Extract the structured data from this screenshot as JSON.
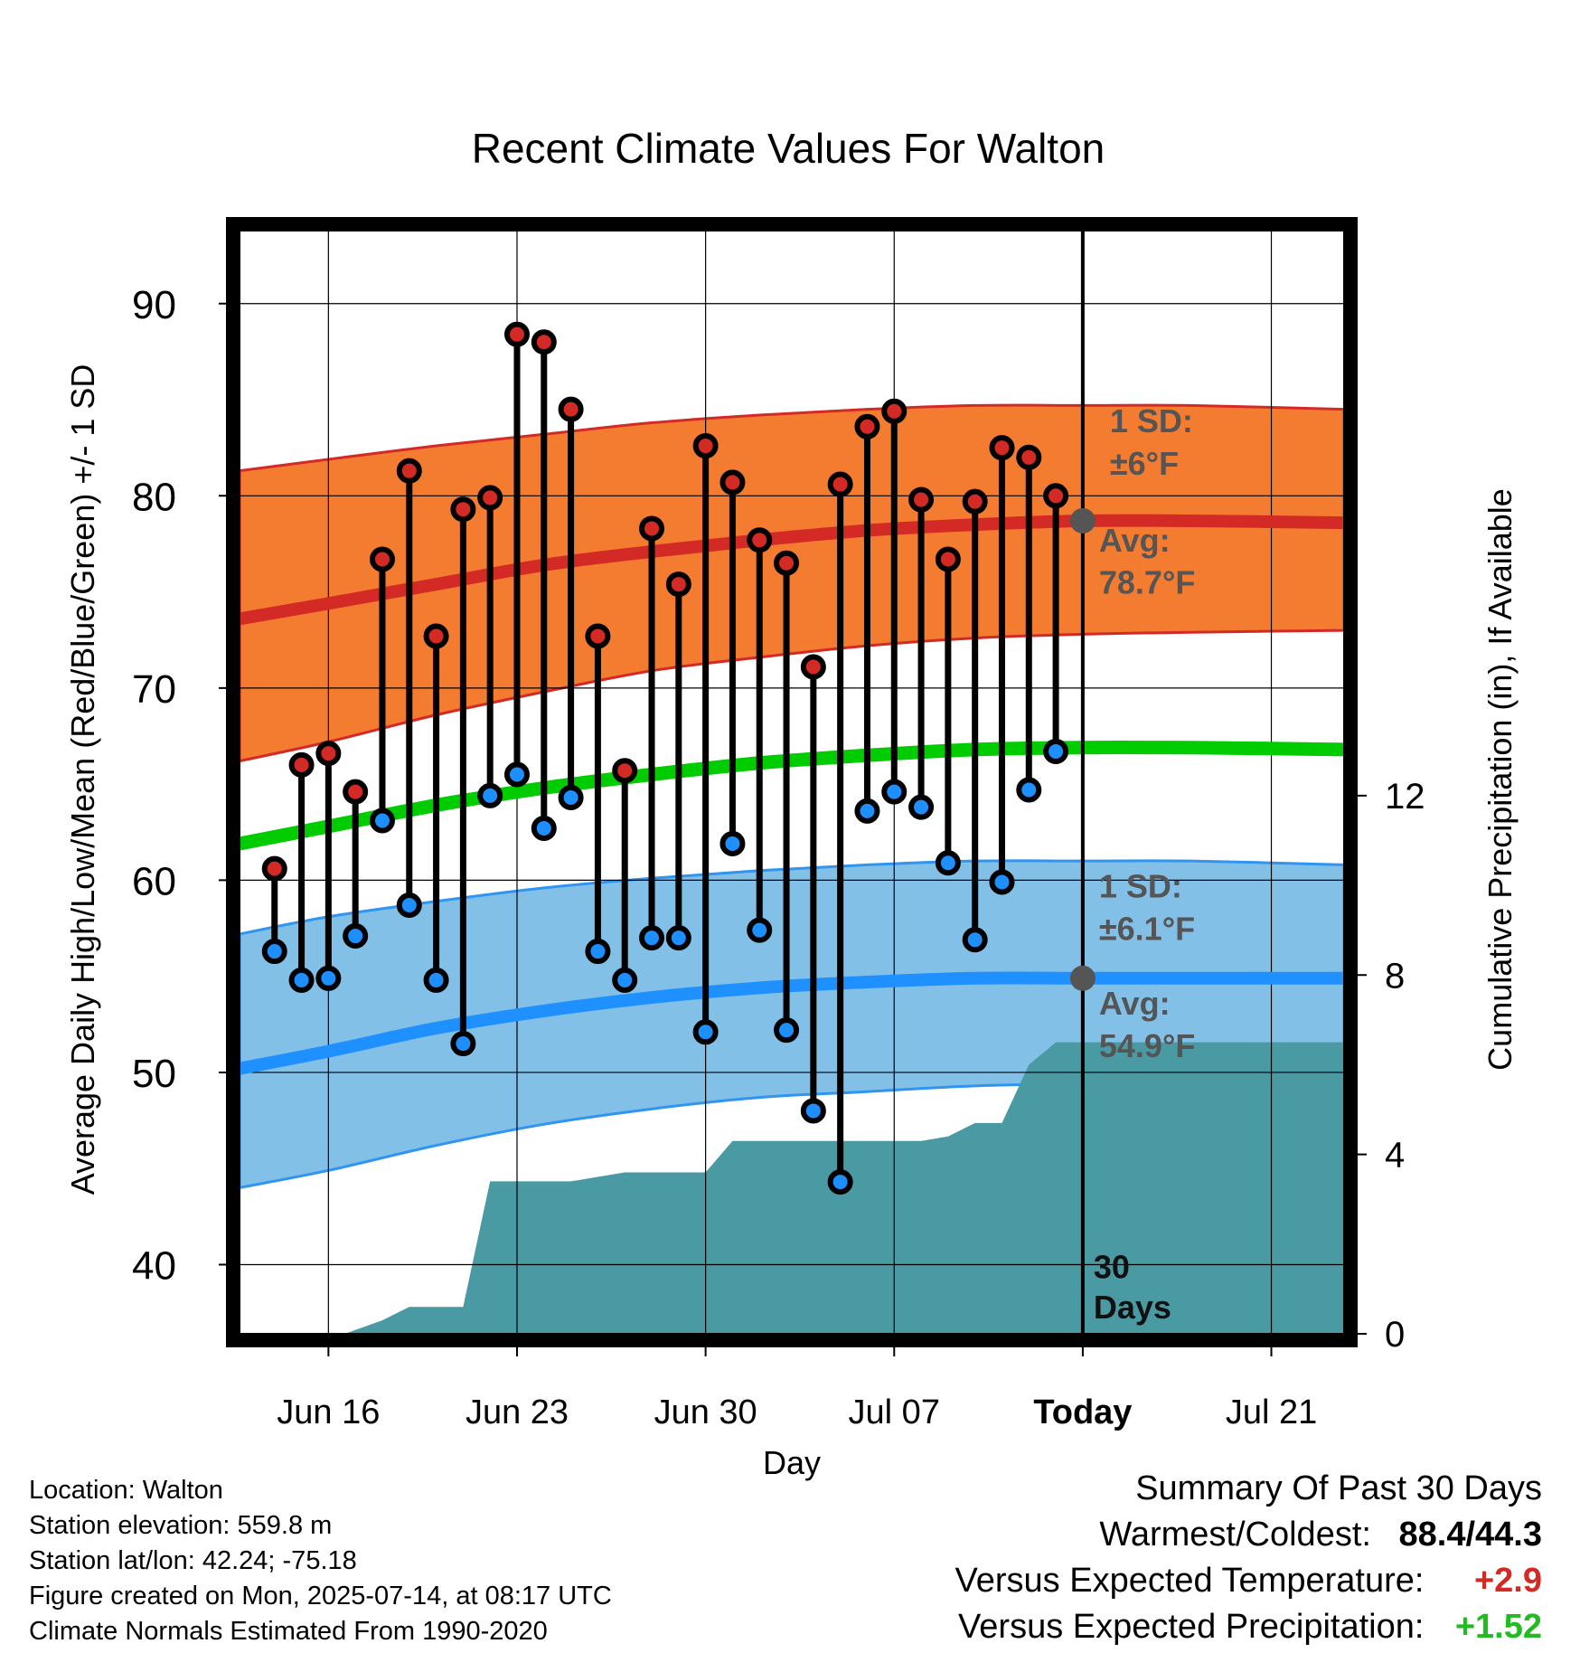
{
  "chart_data": {
    "type": "line",
    "title": "Recent Climate Values For Walton",
    "xlabel": "Day",
    "ylabel": "Average Daily High/Low/Mean (Red/Blue/Green) +/- 1 SD",
    "ylabel_right": "Cumulative Precipitation (in), If Available",
    "ylim": [
      36.4,
      93.8
    ],
    "ylim_right": [
      0,
      24.6
    ],
    "x_ticks": [
      {
        "day": 16,
        "label": "Jun 16"
      },
      {
        "day": 23,
        "label": "Jun 23"
      },
      {
        "day": 30,
        "label": "Jun 30"
      },
      {
        "day": 37,
        "label": "Jul 07"
      },
      {
        "day": 44,
        "label": "Today"
      },
      {
        "day": 51,
        "label": "Jul 21"
      }
    ],
    "y_ticks": [
      40,
      50,
      60,
      70,
      80,
      90
    ],
    "y_ticks_right": [
      0,
      4,
      8,
      12
    ],
    "x_range_days": [
      12.7,
      53.7
    ],
    "today_day": 44,
    "daily": [
      {
        "date": "Jun 14",
        "high": 60.6,
        "low": 56.3
      },
      {
        "date": "Jun 15",
        "high": 66.0,
        "low": 54.8
      },
      {
        "date": "Jun 16",
        "high": 66.6,
        "low": 54.9
      },
      {
        "date": "Jun 17",
        "high": 64.6,
        "low": 57.1
      },
      {
        "date": "Jun 18",
        "high": 76.7,
        "low": 63.1
      },
      {
        "date": "Jun 19",
        "high": 81.3,
        "low": 58.7
      },
      {
        "date": "Jun 20",
        "high": 72.7,
        "low": 54.8
      },
      {
        "date": "Jun 21",
        "high": 79.3,
        "low": 51.5
      },
      {
        "date": "Jun 22",
        "high": 79.9,
        "low": 64.4
      },
      {
        "date": "Jun 23",
        "high": 88.4,
        "low": 65.5
      },
      {
        "date": "Jun 24",
        "high": 88.0,
        "low": 62.7
      },
      {
        "date": "Jun 25",
        "high": 84.5,
        "low": 64.3
      },
      {
        "date": "Jun 26",
        "high": 72.7,
        "low": 56.3
      },
      {
        "date": "Jun 27",
        "high": 65.7,
        "low": 54.8
      },
      {
        "date": "Jun 28",
        "high": 78.3,
        "low": 57.0
      },
      {
        "date": "Jun 29",
        "high": 75.4,
        "low": 57.0
      },
      {
        "date": "Jun 30",
        "high": 82.6,
        "low": 52.1
      },
      {
        "date": "Jul 01",
        "high": 80.7,
        "low": 61.9
      },
      {
        "date": "Jul 02",
        "high": 77.7,
        "low": 57.4
      },
      {
        "date": "Jul 03",
        "high": 76.5,
        "low": 52.2
      },
      {
        "date": "Jul 04",
        "high": 71.1,
        "low": 48.0
      },
      {
        "date": "Jul 05",
        "high": 80.6,
        "low": 44.3
      },
      {
        "date": "Jul 06",
        "high": 83.6,
        "low": 63.6
      },
      {
        "date": "Jul 07",
        "high": 84.4,
        "low": 64.6
      },
      {
        "date": "Jul 08",
        "high": 79.8,
        "low": 63.8
      },
      {
        "date": "Jul 09",
        "high": 76.7,
        "low": 60.9
      },
      {
        "date": "Jul 10",
        "high": 79.7,
        "low": 56.9
      },
      {
        "date": "Jul 11",
        "high": 82.5,
        "low": 59.9
      },
      {
        "date": "Jul 12",
        "high": 82.0,
        "low": 64.7
      },
      {
        "date": "Jul 13",
        "high": 80.0,
        "low": 66.7
      }
    ],
    "normals": {
      "days": [
        12.7,
        16,
        20,
        24,
        28,
        32,
        36,
        40,
        44,
        48,
        53.7
      ],
      "high_mean": [
        73.6,
        74.4,
        75.4,
        76.4,
        77.1,
        77.7,
        78.2,
        78.5,
        78.7,
        78.7,
        78.6
      ],
      "high_upper": [
        81.3,
        81.9,
        82.6,
        83.2,
        83.8,
        84.2,
        84.5,
        84.7,
        84.7,
        84.7,
        84.5
      ],
      "high_lower": [
        66.2,
        67.2,
        68.6,
        69.8,
        70.9,
        71.6,
        72.2,
        72.6,
        72.8,
        72.9,
        73.0
      ],
      "mean": [
        61.9,
        62.8,
        63.9,
        64.8,
        65.5,
        66.1,
        66.5,
        66.8,
        66.9,
        66.9,
        66.8
      ],
      "low_mean": [
        50.2,
        51.1,
        52.3,
        53.2,
        53.9,
        54.4,
        54.7,
        54.9,
        54.9,
        54.9,
        54.9
      ],
      "low_upper": [
        57.2,
        58.1,
        58.9,
        59.6,
        60.1,
        60.5,
        60.8,
        61.0,
        61.0,
        61.0,
        60.8
      ],
      "low_lower": [
        44.0,
        44.9,
        46.2,
        47.3,
        48.1,
        48.7,
        49.0,
        49.3,
        49.4,
        49.5,
        49.3
      ]
    },
    "precip_cumulative": [
      {
        "day": 16.6,
        "value": 0.0
      },
      {
        "day": 18.0,
        "value": 0.3
      },
      {
        "day": 19.0,
        "value": 0.6
      },
      {
        "day": 20.0,
        "value": 0.6
      },
      {
        "day": 21.0,
        "value": 0.6
      },
      {
        "day": 22.0,
        "value": 3.4
      },
      {
        "day": 25.0,
        "value": 3.4
      },
      {
        "day": 27.0,
        "value": 3.6
      },
      {
        "day": 30.0,
        "value": 3.6
      },
      {
        "day": 31.0,
        "value": 4.3
      },
      {
        "day": 38.0,
        "value": 4.3
      },
      {
        "day": 39.0,
        "value": 4.4
      },
      {
        "day": 40.0,
        "value": 4.7
      },
      {
        "day": 41.0,
        "value": 4.7
      },
      {
        "day": 42.0,
        "value": 6.0
      },
      {
        "day": 43.0,
        "value": 6.5
      },
      {
        "day": 53.7,
        "value": 6.5
      }
    ],
    "annotations": {
      "high_sd": "1 SD:",
      "high_sd_val": "±6°F",
      "high_avg": "Avg:",
      "high_avg_val": "78.7°F",
      "low_sd": "1 SD:",
      "low_sd_val": "±6.1°F",
      "low_avg": "Avg:",
      "low_avg_val": "54.9°F",
      "days_num": "30",
      "days_word": "Days"
    },
    "colors": {
      "high_band": "#f47c30",
      "high_line": "#d42a25",
      "mean_line": "#00cc00",
      "low_band": "#82c0e8",
      "low_line": "#1e90ff",
      "low_edge": "#2f95f0",
      "precip": "#4a9aa4",
      "high_dot": "#d42a25",
      "low_dot": "#1e8fff",
      "annotation": "#555555"
    },
    "grid": true,
    "legend": "none"
  },
  "info": {
    "location": "Location: Walton",
    "elevation": "Station elevation: 559.8 m",
    "latlon": "Station lat/lon: 42.24; -75.18",
    "created": "Figure created on Mon, 2025-07-14, at 08:17 UTC",
    "normals": "Climate Normals Estimated From 1990-2020"
  },
  "summary": {
    "title": "Summary Of Past 30 Days",
    "warm_cold_label": "Warmest/Coldest:",
    "warm_cold_value": "88.4/44.3",
    "temp_label": "Versus Expected Temperature:",
    "temp_value": "+2.9",
    "temp_color": "#d42a25",
    "precip_label": "Versus Expected Precipitation:",
    "precip_value": "+1.52",
    "precip_color": "#22bb22"
  }
}
